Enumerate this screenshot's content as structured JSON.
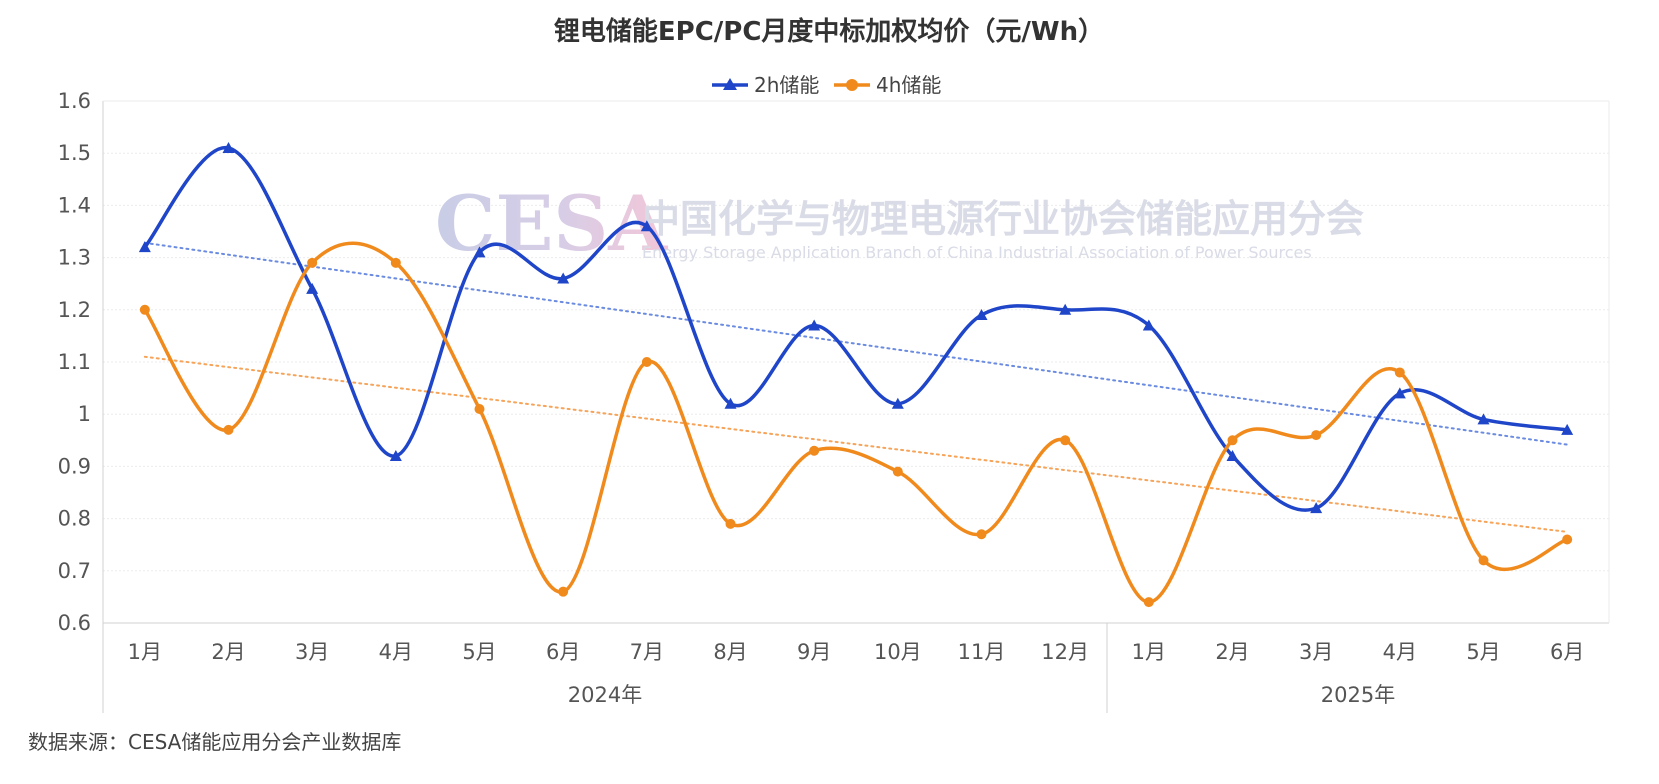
{
  "chart_data": {
    "type": "line",
    "title": "锂电储能EPC/PC月度中标加权均价（元/Wh）",
    "xlabel": "",
    "ylabel": "",
    "ylim": [
      0.6,
      1.6
    ],
    "yticks": [
      "0.6",
      "0.7",
      "0.8",
      "0.9",
      "1",
      "1.1",
      "1.2",
      "1.3",
      "1.4",
      "1.5",
      "1.6"
    ],
    "categories": [
      "1月",
      "2月",
      "3月",
      "4月",
      "5月",
      "6月",
      "7月",
      "8月",
      "9月",
      "10月",
      "11月",
      "12月",
      "1月",
      "2月",
      "3月",
      "4月",
      "5月",
      "6月"
    ],
    "groups": [
      {
        "label": "2024年",
        "start": 0,
        "end": 11
      },
      {
        "label": "2025年",
        "start": 12,
        "end": 17
      }
    ],
    "series": [
      {
        "name": "2h储能",
        "color": "#1f45c9",
        "marker": "triangle",
        "values": [
          1.32,
          1.51,
          1.24,
          0.92,
          1.31,
          1.26,
          1.36,
          1.02,
          1.17,
          1.02,
          1.19,
          1.2,
          1.17,
          0.92,
          0.82,
          1.04,
          0.99,
          0.97
        ]
      },
      {
        "name": "4h储能",
        "color": "#f08a1c",
        "marker": "circle",
        "values": [
          1.2,
          0.97,
          1.29,
          1.29,
          1.01,
          0.66,
          1.1,
          0.79,
          0.93,
          0.89,
          0.77,
          0.95,
          0.64,
          0.95,
          0.96,
          1.08,
          0.72,
          0.76
        ]
      }
    ],
    "trendlines": true,
    "grid": true,
    "legend": "top-center"
  },
  "watermark": {
    "logo": "CESA",
    "name": "中国化学与物理电源行业协会储能应用分会",
    "name_en": "Energy Storage Application Branch of China Industrial Association of Power Sources"
  },
  "source": "数据来源：CESA储能应用分会产业数据库"
}
